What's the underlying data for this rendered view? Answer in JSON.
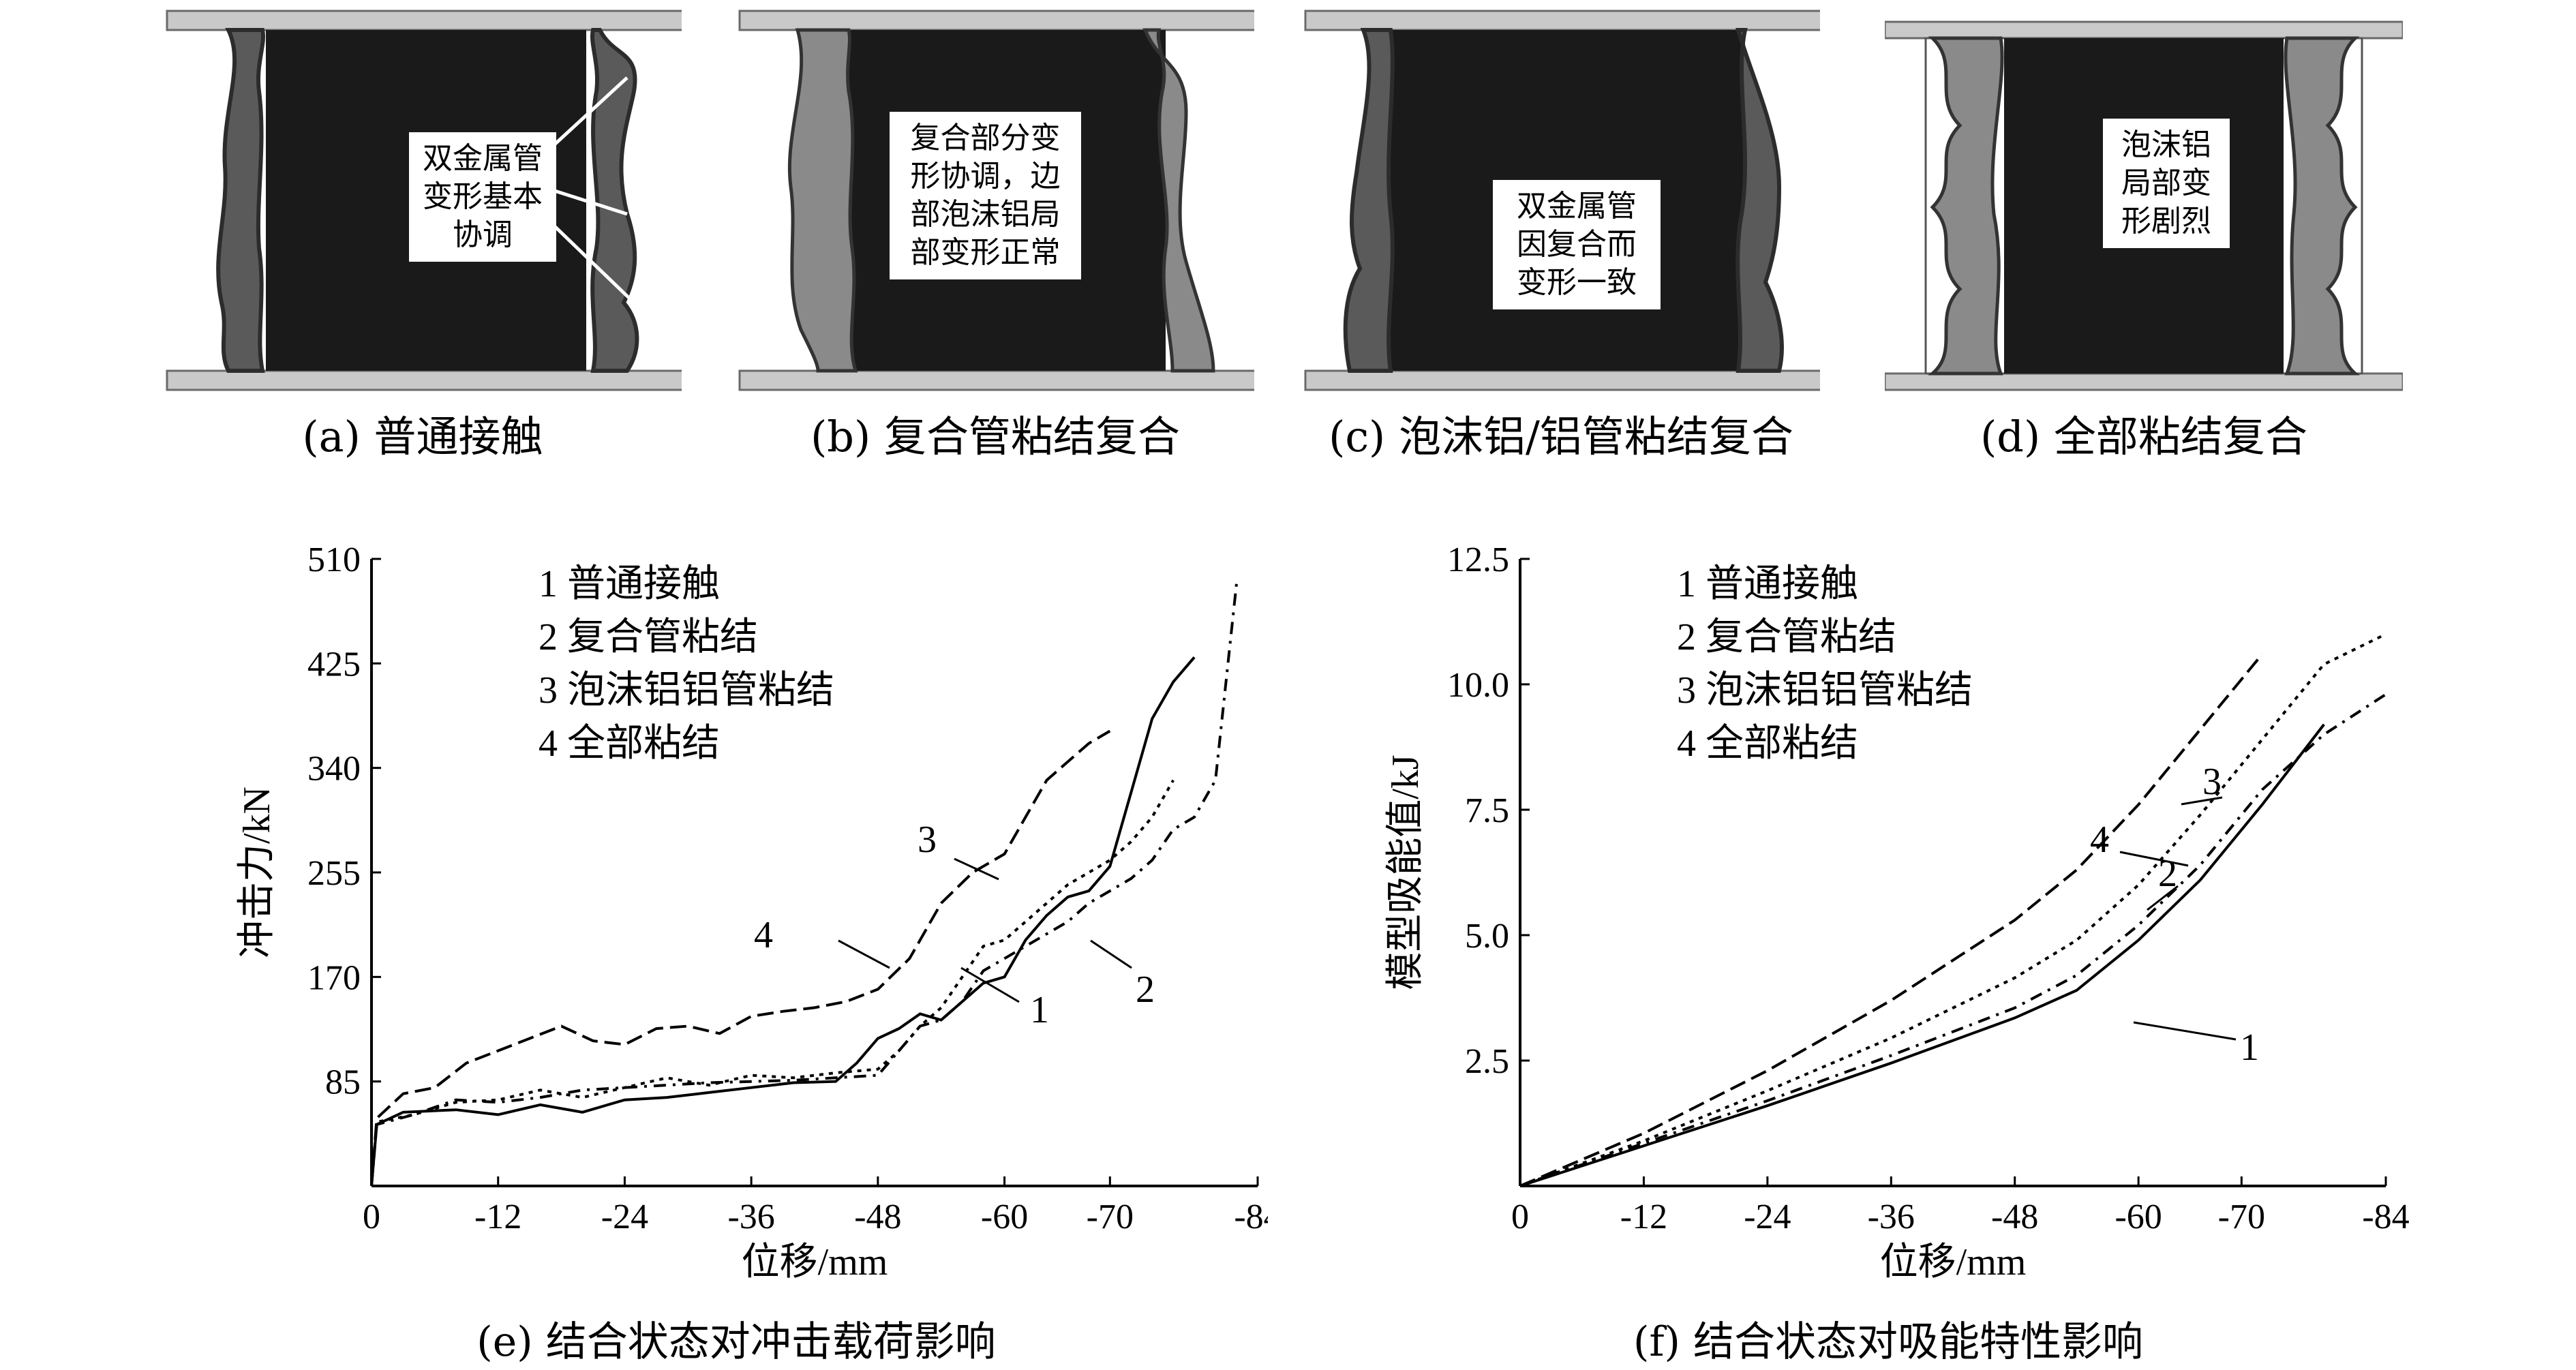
{
  "panels": [
    {
      "id": "a",
      "caption": "(a) 普通接触",
      "annotation": "双金属管\n变形基本\n协调"
    },
    {
      "id": "b",
      "caption": "(b) 复合管粘结复合",
      "annotation": "复合部分变\n形协调，边\n部泡沫铝局\n部变形正常"
    },
    {
      "id": "c",
      "caption": "(c) 泡沫铝/铝管粘结复合",
      "annotation": "双金属管\n因复合而\n变形一致"
    },
    {
      "id": "d",
      "caption": "(d) 全部粘结复合",
      "annotation": "泡沫铝\n局部变\n形剧烈"
    }
  ],
  "captions": {
    "e": "(e) 结合状态对冲击载荷影响",
    "f": "(f) 结合状态对吸能特性影响"
  },
  "colors": {
    "ink": "#000000",
    "core": "#1a1a1a",
    "plate": "#c9c9c9"
  },
  "chart_data": [
    {
      "id": "e",
      "type": "line",
      "xlabel": "位移/mm",
      "ylabel": "冲击力/kN",
      "xticks": [
        "0",
        "-12",
        "-24",
        "-36",
        "-48",
        "-60",
        "-70",
        "-84"
      ],
      "yticks": [
        "85",
        "170",
        "255",
        "340",
        "425",
        "510"
      ],
      "xlim": [
        0,
        -84
      ],
      "ylim": [
        0,
        510
      ],
      "legend": [
        "1  普通接触",
        "2  复合管粘结",
        "3  泡沫铝铝管粘结",
        "4  全部粘结"
      ],
      "callouts": [
        "1",
        "2",
        "3",
        "4"
      ],
      "series": [
        {
          "label": "1",
          "dash": "",
          "points": [
            [
              0,
              0
            ],
            [
              -0.5,
              50
            ],
            [
              -3,
              60
            ],
            [
              -8,
              62
            ],
            [
              -12,
              58
            ],
            [
              -16,
              66
            ],
            [
              -20,
              60
            ],
            [
              -24,
              70
            ],
            [
              -28,
              72
            ],
            [
              -32,
              76
            ],
            [
              -36,
              80
            ],
            [
              -40,
              84
            ],
            [
              -44,
              85
            ],
            [
              -46,
              100
            ],
            [
              -48,
              120
            ],
            [
              -50,
              128
            ],
            [
              -52,
              140
            ],
            [
              -54,
              135
            ],
            [
              -56,
              150
            ],
            [
              -58,
              165
            ],
            [
              -60,
              170
            ],
            [
              -62,
              200
            ],
            [
              -64,
              220
            ],
            [
              -66,
              235
            ],
            [
              -68,
              240
            ],
            [
              -70,
              260
            ],
            [
              -72,
              320
            ],
            [
              -74,
              380
            ],
            [
              -76,
              410
            ],
            [
              -78,
              430
            ]
          ]
        },
        {
          "label": "2",
          "dash": "18,10,4,10",
          "points": [
            [
              0,
              0
            ],
            [
              -0.5,
              50
            ],
            [
              -4,
              58
            ],
            [
              -8,
              70
            ],
            [
              -12,
              68
            ],
            [
              -16,
              72
            ],
            [
              -20,
              78
            ],
            [
              -24,
              80
            ],
            [
              -28,
              82
            ],
            [
              -32,
              84
            ],
            [
              -36,
              85
            ],
            [
              -40,
              86
            ],
            [
              -44,
              88
            ],
            [
              -48,
              90
            ],
            [
              -50,
              110
            ],
            [
              -52,
              130
            ],
            [
              -54,
              135
            ],
            [
              -56,
              150
            ],
            [
              -58,
              175
            ],
            [
              -60,
              185
            ],
            [
              -62,
              195
            ],
            [
              -64,
              205
            ],
            [
              -66,
              215
            ],
            [
              -68,
              230
            ],
            [
              -70,
              240
            ],
            [
              -72,
              250
            ],
            [
              -74,
              265
            ],
            [
              -76,
              290
            ],
            [
              -78,
              300
            ],
            [
              -80,
              330
            ],
            [
              -82,
              490
            ]
          ]
        },
        {
          "label": "3",
          "dash": "6,8",
          "points": [
            [
              0,
              0
            ],
            [
              -0.5,
              52
            ],
            [
              -4,
              58
            ],
            [
              -8,
              68
            ],
            [
              -12,
              70
            ],
            [
              -16,
              78
            ],
            [
              -20,
              72
            ],
            [
              -24,
              80
            ],
            [
              -28,
              88
            ],
            [
              -32,
              82
            ],
            [
              -36,
              90
            ],
            [
              -40,
              88
            ],
            [
              -44,
              92
            ],
            [
              -48,
              95
            ],
            [
              -50,
              110
            ],
            [
              -52,
              130
            ],
            [
              -54,
              145
            ],
            [
              -56,
              170
            ],
            [
              -58,
              195
            ],
            [
              -60,
              200
            ],
            [
              -62,
              215
            ],
            [
              -64,
              230
            ],
            [
              -66,
              245
            ],
            [
              -68,
              255
            ],
            [
              -70,
              265
            ],
            [
              -72,
              280
            ],
            [
              -74,
              300
            ],
            [
              -76,
              330
            ]
          ]
        },
        {
          "label": "4",
          "dash": "24,10",
          "points": [
            [
              0,
              0
            ],
            [
              -0.5,
              55
            ],
            [
              -3,
              75
            ],
            [
              -6,
              80
            ],
            [
              -9,
              100
            ],
            [
              -12,
              110
            ],
            [
              -15,
              120
            ],
            [
              -18,
              130
            ],
            [
              -21,
              118
            ],
            [
              -24,
              115
            ],
            [
              -27,
              128
            ],
            [
              -30,
              130
            ],
            [
              -33,
              124
            ],
            [
              -36,
              138
            ],
            [
              -39,
              142
            ],
            [
              -42,
              145
            ],
            [
              -45,
              150
            ],
            [
              -48,
              160
            ],
            [
              -51,
              185
            ],
            [
              -54,
              230
            ],
            [
              -57,
              255
            ],
            [
              -60,
              270
            ],
            [
              -62,
              300
            ],
            [
              -64,
              330
            ],
            [
              -66,
              345
            ],
            [
              -68,
              360
            ],
            [
              -70,
              370
            ]
          ]
        }
      ]
    },
    {
      "id": "f",
      "type": "line",
      "xlabel": "位移/mm",
      "ylabel": "模型吸能值/kJ",
      "xticks": [
        "0",
        "-12",
        "-24",
        "-36",
        "-48",
        "-60",
        "-70",
        "-84"
      ],
      "yticks": [
        "2.5",
        "5.0",
        "7.5",
        "10.0",
        "12.5"
      ],
      "xlim": [
        0,
        -84
      ],
      "ylim": [
        0,
        12.5
      ],
      "legend": [
        "1  普通接触",
        "2  复合管粘结",
        "3  泡沫铝铝管粘结",
        "4  全部粘结"
      ],
      "callouts": [
        "1",
        "2",
        "3",
        "4"
      ],
      "series": [
        {
          "label": "1",
          "dash": "",
          "points": [
            [
              0,
              0
            ],
            [
              -12,
              0.8
            ],
            [
              -24,
              1.6
            ],
            [
              -36,
              2.45
            ],
            [
              -48,
              3.35
            ],
            [
              -54,
              3.9
            ],
            [
              -60,
              4.9
            ],
            [
              -66,
              6.1
            ],
            [
              -72,
              7.6
            ],
            [
              -78,
              9.2
            ]
          ]
        },
        {
          "label": "2",
          "dash": "18,10,4,10",
          "points": [
            [
              0,
              0
            ],
            [
              -12,
              0.85
            ],
            [
              -24,
              1.7
            ],
            [
              -36,
              2.6
            ],
            [
              -48,
              3.55
            ],
            [
              -54,
              4.2
            ],
            [
              -60,
              5.2
            ],
            [
              -66,
              6.4
            ],
            [
              -72,
              7.9
            ],
            [
              -78,
              9.0
            ],
            [
              -84,
              9.8
            ]
          ]
        },
        {
          "label": "3",
          "dash": "6,8",
          "points": [
            [
              0,
              0
            ],
            [
              -12,
              0.9
            ],
            [
              -24,
              1.9
            ],
            [
              -36,
              2.95
            ],
            [
              -48,
              4.15
            ],
            [
              -54,
              4.9
            ],
            [
              -60,
              6.0
            ],
            [
              -66,
              7.4
            ],
            [
              -72,
              8.9
            ],
            [
              -78,
              10.4
            ],
            [
              -84,
              11.0
            ]
          ]
        },
        {
          "label": "4",
          "dash": "24,10",
          "points": [
            [
              0,
              0
            ],
            [
              -12,
              1.05
            ],
            [
              -24,
              2.3
            ],
            [
              -36,
              3.7
            ],
            [
              -48,
              5.3
            ],
            [
              -54,
              6.3
            ],
            [
              -60,
              7.6
            ],
            [
              -66,
              9.1
            ],
            [
              -72,
              10.6
            ]
          ]
        }
      ]
    }
  ]
}
